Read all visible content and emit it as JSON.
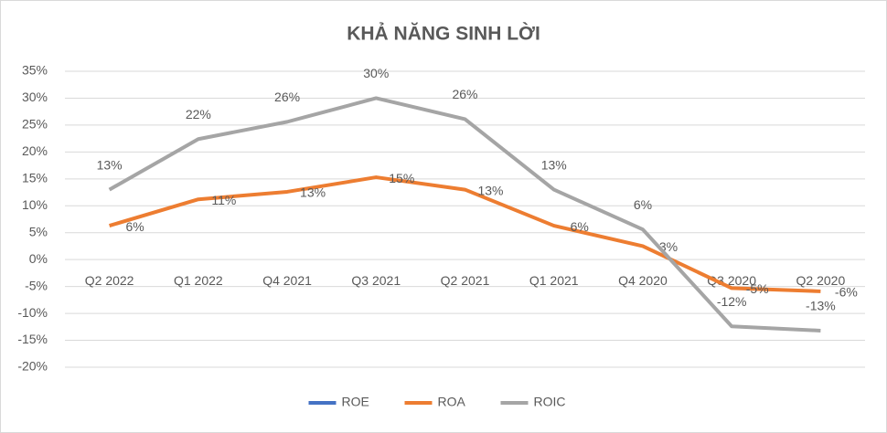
{
  "chart_data": {
    "type": "line",
    "title": "KHẢ NĂNG SINH LỜI",
    "categories": [
      "Q2 2022",
      "Q1 2022",
      "Q4 2021",
      "Q3 2021",
      "Q2 2021",
      "Q1 2021",
      "Q4 2020",
      "Q3 2020",
      "Q2 2020"
    ],
    "series": [
      {
        "name": "ROE",
        "color": "#4472c4",
        "values": [
          null,
          null,
          null,
          null,
          null,
          null,
          null,
          null,
          null
        ]
      },
      {
        "name": "ROA",
        "color": "#ed7d31",
        "values": [
          6.3,
          11.2,
          12.6,
          15.3,
          13.0,
          6.3,
          2.5,
          -5.3,
          -5.9
        ],
        "value_labels": [
          "6%",
          "11%",
          "13%",
          "15%",
          "13%",
          "6%",
          "3%",
          "-5%",
          "-6%"
        ]
      },
      {
        "name": "ROIC",
        "color": "#a5a5a5",
        "values": [
          13.0,
          22.4,
          25.6,
          30.0,
          26.1,
          13.0,
          5.6,
          -12.4,
          -13.2
        ],
        "value_labels": [
          "13%",
          "22%",
          "26%",
          "30%",
          "26%",
          "13%",
          "6%",
          "-12%",
          "-13%"
        ]
      }
    ],
    "ylim": [
      -20,
      35
    ],
    "yticks": [
      {
        "value": -20,
        "label": "-20%"
      },
      {
        "value": -15,
        "label": "-15%"
      },
      {
        "value": -10,
        "label": "-10%"
      },
      {
        "value": -5,
        "label": "-5%"
      },
      {
        "value": 0,
        "label": "0%"
      },
      {
        "value": 5,
        "label": "5%"
      },
      {
        "value": 10,
        "label": "10%"
      },
      {
        "value": 15,
        "label": "15%"
      },
      {
        "value": 20,
        "label": "20%"
      },
      {
        "value": 25,
        "label": "25%"
      },
      {
        "value": 30,
        "label": "30%"
      },
      {
        "value": 35,
        "label": "35%"
      }
    ],
    "grid": true,
    "legend": "bottom"
  }
}
